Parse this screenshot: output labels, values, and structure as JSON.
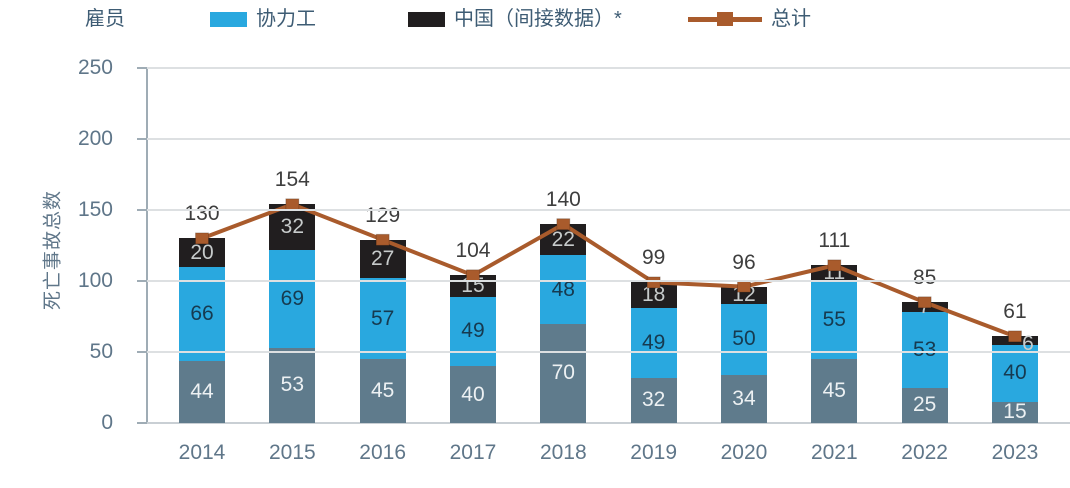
{
  "legend": {
    "employee_label": "雇员",
    "contractor_label": "协力工",
    "china_label": "中国（间接数据）*",
    "total_label": "总计"
  },
  "colors": {
    "employee": "#5F7B8C",
    "contractor": "#29A8DF",
    "china": "#211E1F",
    "total": "#A95B2C",
    "label_employee": "#EDF1F3",
    "label_contractor": "#163A50",
    "label_china": "#C7CBCB",
    "total_label_text": "#3E3E3E",
    "axis_text": "#5F7689",
    "legend_text": "#3E5C74",
    "gridline": "#DDE0E2",
    "y_axis_line": "#9FACB5",
    "x_axis_line": "#C9CFD4"
  },
  "chart_data": {
    "type": "bar",
    "subtype": "stacked-bar-with-line",
    "categories": [
      "2014",
      "2015",
      "2016",
      "2017",
      "2018",
      "2019",
      "2020",
      "2021",
      "2022",
      "2023"
    ],
    "series": [
      {
        "name": "雇员",
        "kind": "bar",
        "color_key": "employee",
        "values": [
          44,
          53,
          45,
          40,
          70,
          32,
          34,
          45,
          25,
          15
        ]
      },
      {
        "name": "协力工",
        "kind": "bar",
        "color_key": "contractor",
        "values": [
          66,
          69,
          57,
          49,
          48,
          49,
          50,
          55,
          53,
          40
        ]
      },
      {
        "name": "中国（间接数据）*",
        "kind": "bar",
        "color_key": "china",
        "values": [
          20,
          32,
          27,
          15,
          22,
          18,
          12,
          11,
          7,
          6
        ]
      },
      {
        "name": "总计",
        "kind": "line",
        "color_key": "total",
        "values": [
          130,
          154,
          129,
          104,
          140,
          99,
          96,
          111,
          85,
          61
        ]
      }
    ],
    "title": "",
    "xlabel": "",
    "ylabel": "死亡事故总数",
    "y_ticks": [
      0,
      50,
      100,
      150,
      200,
      250
    ],
    "ylim": [
      0,
      250
    ],
    "grid": true,
    "legend_position": "top"
  }
}
